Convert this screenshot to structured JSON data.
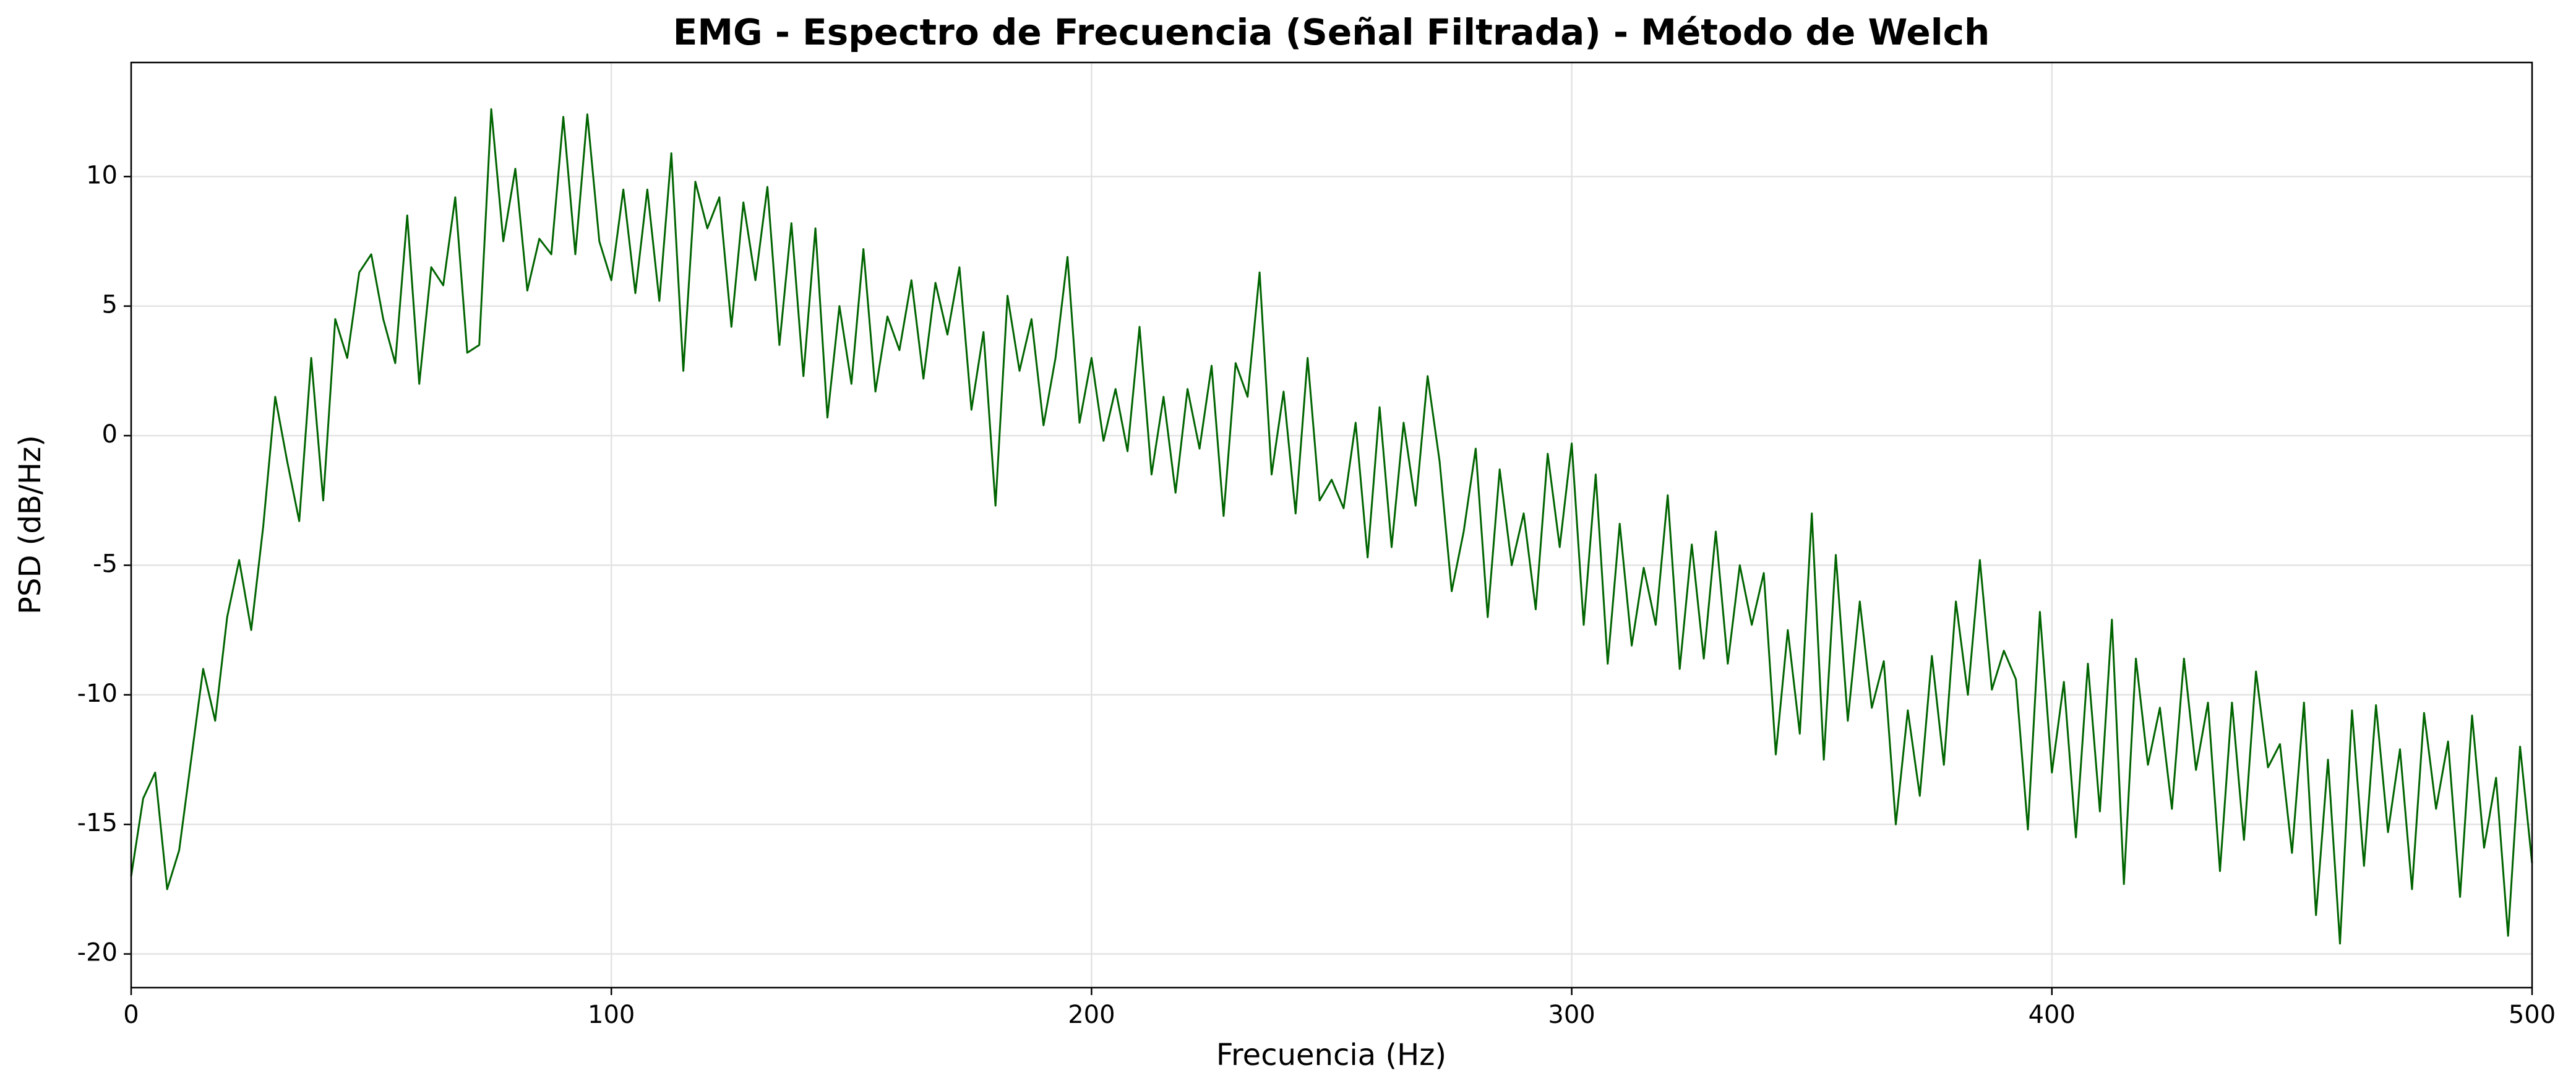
{
  "chart_data": {
    "type": "line",
    "title": "EMG - Espectro de Frecuencia (Señal Filtrada) - Método de Welch",
    "x_label": "Frecuencia (Hz)",
    "y_label": "PSD (dB/Hz)",
    "color": "#006400",
    "grid": true,
    "xlim": [
      0,
      500
    ],
    "xticks": [
      0,
      100,
      200,
      300,
      400,
      500
    ],
    "ylim": [
      -21.3,
      14.4
    ],
    "yticks": [
      -20,
      -15,
      -10,
      -5,
      0,
      5,
      10
    ],
    "x": [
      0,
      2.5,
      5,
      7.5,
      10,
      12.5,
      15,
      17.5,
      20,
      22.5,
      25,
      27.5,
      30,
      32.5,
      35,
      37.5,
      40,
      42.5,
      45,
      47.5,
      50,
      52.5,
      55,
      57.5,
      60,
      62.5,
      65,
      67.5,
      70,
      72.5,
      75,
      77.5,
      80,
      82.5,
      85,
      87.5,
      90,
      92.5,
      95,
      97.5,
      100,
      102.5,
      105,
      107.5,
      110,
      112.5,
      115,
      117.5,
      120,
      122.5,
      125,
      127.5,
      130,
      132.5,
      135,
      137.5,
      140,
      142.5,
      145,
      147.5,
      150,
      152.5,
      155,
      157.5,
      160,
      162.5,
      165,
      167.5,
      170,
      172.5,
      175,
      177.5,
      180,
      182.5,
      185,
      187.5,
      190,
      192.5,
      195,
      197.5,
      200,
      202.5,
      205,
      207.5,
      210,
      212.5,
      215,
      217.5,
      220,
      222.5,
      225,
      227.5,
      230,
      232.5,
      235,
      237.5,
      240,
      242.5,
      245,
      247.5,
      250,
      252.5,
      255,
      257.5,
      260,
      262.5,
      265,
      267.5,
      270,
      272.5,
      275,
      277.5,
      280,
      282.5,
      285,
      287.5,
      290,
      292.5,
      295,
      297.5,
      300,
      302.5,
      305,
      307.5,
      310,
      312.5,
      315,
      317.5,
      320,
      322.5,
      325,
      327.5,
      330,
      332.5,
      335,
      337.5,
      340,
      342.5,
      345,
      347.5,
      350,
      352.5,
      355,
      357.5,
      360,
      362.5,
      365,
      367.5,
      370,
      372.5,
      375,
      377.5,
      380,
      382.5,
      385,
      387.5,
      390,
      392.5,
      395,
      397.5,
      400,
      402.5,
      405,
      407.5,
      410,
      412.5,
      415,
      417.5,
      420,
      422.5,
      425,
      427.5,
      430,
      432.5,
      435,
      437.5,
      440,
      442.5,
      445,
      447.5,
      450,
      452.5,
      455,
      457.5,
      460,
      462.5,
      465,
      467.5,
      470,
      472.5,
      475,
      477.5,
      480,
      482.5,
      485,
      487.5,
      490,
      492.5,
      495,
      497.5,
      500
    ],
    "values": [
      -17,
      -14,
      -13,
      -17.5,
      -16,
      -12.5,
      -9,
      -11,
      -7,
      -4.8,
      -7.5,
      -3.5,
      1.5,
      -1,
      -3.3,
      3,
      -2.5,
      4.5,
      3,
      6.3,
      7,
      4.5,
      2.8,
      8.5,
      2,
      6.5,
      5.8,
      9.2,
      3.2,
      3.5,
      12.6,
      7.5,
      10.3,
      5.6,
      7.6,
      7,
      12.3,
      7,
      12.4,
      7.5,
      6,
      9.5,
      5.5,
      9.5,
      5.2,
      10.9,
      2.5,
      9.8,
      8,
      9.2,
      4.2,
      9,
      6,
      9.6,
      3.5,
      8.2,
      2.3,
      8,
      0.7,
      5,
      2,
      7.2,
      1.7,
      4.6,
      3.3,
      6,
      2.2,
      5.9,
      3.9,
      6.5,
      1,
      4,
      -2.7,
      5.4,
      2.5,
      4.5,
      0.4,
      3,
      6.9,
      0.5,
      3,
      -0.2,
      1.8,
      -0.6,
      4.2,
      -1.5,
      1.5,
      -2.2,
      1.8,
      -0.5,
      2.7,
      -3.1,
      2.8,
      1.5,
      6.3,
      -1.5,
      1.7,
      -3,
      3,
      -2.5,
      -1.7,
      -2.8,
      0.5,
      -4.7,
      1.1,
      -4.3,
      0.5,
      -2.7,
      2.3,
      -1,
      -6,
      -3.7,
      -0.5,
      -7,
      -1.3,
      -5,
      -3,
      -6.7,
      -0.7,
      -4.3,
      -0.3,
      -7.3,
      -1.5,
      -8.8,
      -3.4,
      -8.1,
      -5.1,
      -7.3,
      -2.3,
      -9,
      -4.2,
      -8.6,
      -3.7,
      -8.8,
      -5,
      -7.3,
      -5.3,
      -12.3,
      -7.5,
      -11.5,
      -3,
      -12.5,
      -4.6,
      -11,
      -6.4,
      -10.5,
      -8.7,
      -15,
      -10.6,
      -13.9,
      -8.5,
      -12.7,
      -6.4,
      -10,
      -4.8,
      -9.8,
      -8.3,
      -9.4,
      -15.2,
      -6.8,
      -13,
      -9.5,
      -15.5,
      -8.8,
      -14.5,
      -7.1,
      -17.3,
      -8.6,
      -12.7,
      -10.5,
      -14.4,
      -8.6,
      -12.9,
      -10.3,
      -16.8,
      -10.3,
      -15.6,
      -9.1,
      -12.8,
      -11.9,
      -16.1,
      -10.3,
      -18.5,
      -12.5,
      -19.6,
      -10.6,
      -16.6,
      -10.4,
      -15.3,
      -12.1,
      -17.5,
      -10.7,
      -14.4,
      -11.8,
      -17.8,
      -10.8,
      -15.9,
      -13.2,
      -19.3,
      -12,
      -16.5
    ]
  }
}
